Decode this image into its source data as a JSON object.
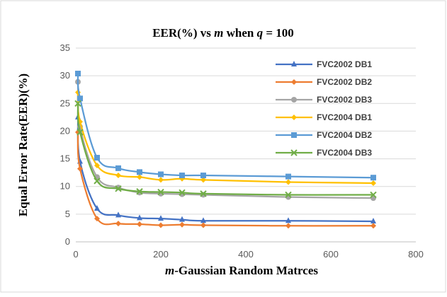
{
  "chart_data": {
    "type": "line",
    "title": "EER(%) vs m when q = 100",
    "title_parts": {
      "prefix": "EER(%) vs ",
      "m": "m",
      "middle": " when ",
      "q": "q",
      "suffix": " = 100"
    },
    "xlabel": "m-Gaussian Random Matrces",
    "xlabel_parts": {
      "italic": "m",
      "rest": "-Gaussian Random Matrces"
    },
    "ylabel": "Equal Error Rate(EER)(%)",
    "xlim": [
      0,
      800
    ],
    "ylim": [
      0,
      35
    ],
    "xticks": [
      0,
      200,
      400,
      600,
      800
    ],
    "yticks": [
      0,
      5,
      10,
      15,
      20,
      25,
      30,
      35
    ],
    "grid": "horizontal",
    "legend_position": "right",
    "x": [
      5,
      10,
      50,
      100,
      150,
      200,
      250,
      300,
      500,
      700
    ],
    "series": [
      {
        "name": "FVC2002 DB1",
        "color": "#4472C4",
        "marker": "triangle",
        "values": [
          22.5,
          14.5,
          6.0,
          4.8,
          4.3,
          4.2,
          4.0,
          3.8,
          3.8,
          3.7
        ]
      },
      {
        "name": "FVC2002 DB2",
        "color": "#ED7D31",
        "marker": "diamond",
        "values": [
          19.8,
          13.2,
          4.2,
          3.3,
          3.2,
          3.0,
          3.1,
          3.0,
          2.9,
          2.9
        ]
      },
      {
        "name": "FVC2002 DB3",
        "color": "#A5A5A5",
        "marker": "circle",
        "values": [
          28.9,
          20.8,
          11.7,
          9.8,
          8.9,
          8.7,
          8.6,
          8.5,
          8.1,
          7.9
        ]
      },
      {
        "name": "FVC2004 DB1",
        "color": "#FFC000",
        "marker": "diamond",
        "values": [
          27.0,
          21.7,
          13.8,
          12.0,
          11.7,
          11.2,
          11.4,
          11.2,
          10.8,
          10.6
        ]
      },
      {
        "name": "FVC2004 DB2",
        "color": "#5B9BD5",
        "marker": "square",
        "values": [
          30.4,
          25.9,
          15.2,
          13.3,
          12.6,
          12.2,
          12.0,
          12.0,
          11.8,
          11.6
        ]
      },
      {
        "name": "FVC2004 DB3",
        "color": "#70AD47",
        "marker": "x",
        "values": [
          25.0,
          19.8,
          11.0,
          9.6,
          9.1,
          9.0,
          8.9,
          8.7,
          8.5,
          8.5
        ]
      }
    ]
  }
}
